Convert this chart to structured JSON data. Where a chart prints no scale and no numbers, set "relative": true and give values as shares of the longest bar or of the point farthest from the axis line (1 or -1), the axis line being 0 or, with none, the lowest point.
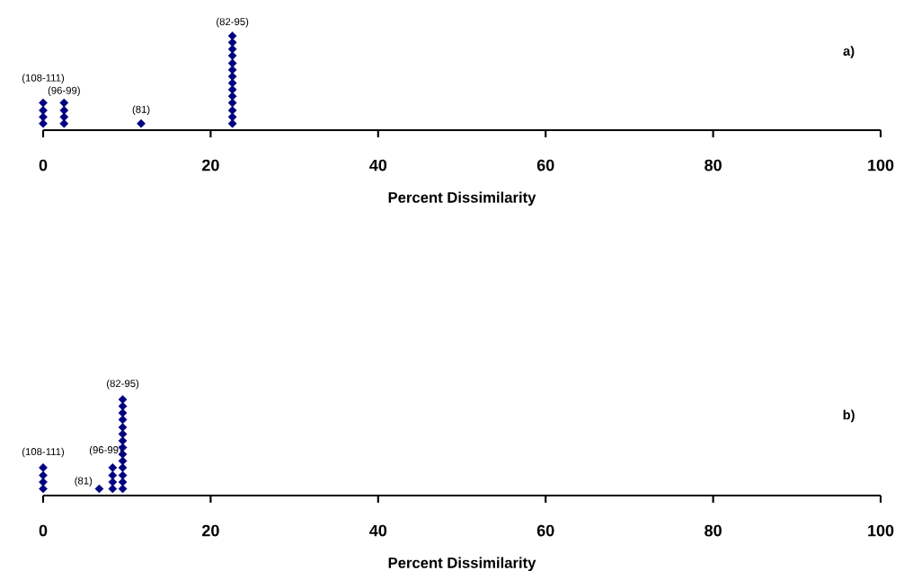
{
  "chart_data": [
    {
      "type": "scatter",
      "title": "a)",
      "xlabel": "Percent Dissimilarity",
      "relative": true,
      "marker": "diamond",
      "xlim": [
        0,
        100
      ],
      "xticks": [
        0,
        20,
        40,
        60,
        80,
        100
      ],
      "series": [
        {
          "color": "#000080",
          "x": [
            0,
            0,
            0,
            0,
            2.5,
            2.5,
            2.5,
            2.5,
            11.7,
            22.6,
            22.6,
            22.6,
            22.6,
            22.6,
            22.6,
            22.6,
            22.6,
            22.6,
            22.6,
            22.6,
            22.6,
            22.6,
            22.6
          ],
          "values": [
            0.07,
            0.14,
            0.21,
            0.29,
            0.07,
            0.14,
            0.21,
            0.29,
            0.07,
            0.07,
            0.14,
            0.21,
            0.29,
            0.36,
            0.43,
            0.5,
            0.57,
            0.64,
            0.71,
            0.79,
            0.86,
            0.93,
            1.0
          ]
        }
      ],
      "annotations": [
        {
          "text": "(108-111)",
          "x": 0,
          "y": 0.29
        },
        {
          "text": "(96-99)",
          "x": 2.5,
          "y": 0.29
        },
        {
          "text": "(81)",
          "x": 11.7,
          "y": 0.07
        },
        {
          "text": "(82-95)",
          "x": 22.6,
          "y": 1.0
        }
      ]
    },
    {
      "type": "scatter",
      "title": "b)",
      "xlabel": "Percent Dissimilarity",
      "relative": true,
      "marker": "diamond",
      "xlim": [
        0,
        100
      ],
      "xticks": [
        0,
        20,
        40,
        60,
        80,
        100
      ],
      "series": [
        {
          "color": "#000080",
          "x": [
            0,
            0,
            0,
            0,
            6.7,
            8.3,
            8.3,
            8.3,
            8.3,
            9.5,
            9.5,
            9.5,
            9.5,
            9.5,
            9.5,
            9.5,
            9.5,
            9.5,
            9.5,
            9.5,
            9.5,
            9.5,
            9.5
          ],
          "values": [
            0.07,
            0.14,
            0.21,
            0.29,
            0.07,
            0.07,
            0.14,
            0.21,
            0.29,
            0.07,
            0.14,
            0.21,
            0.29,
            0.36,
            0.43,
            0.5,
            0.57,
            0.64,
            0.71,
            0.79,
            0.86,
            0.93,
            1.0
          ]
        }
      ],
      "annotations": [
        {
          "text": "(108-111)",
          "x": 0,
          "y": 0.29
        },
        {
          "text": "(96-99)",
          "x": 8.3,
          "y": 0.29
        },
        {
          "text": "(81)",
          "x": 6.7,
          "y": 0.07
        },
        {
          "text": "(82-95)",
          "x": 9.5,
          "y": 1.0
        }
      ]
    }
  ]
}
